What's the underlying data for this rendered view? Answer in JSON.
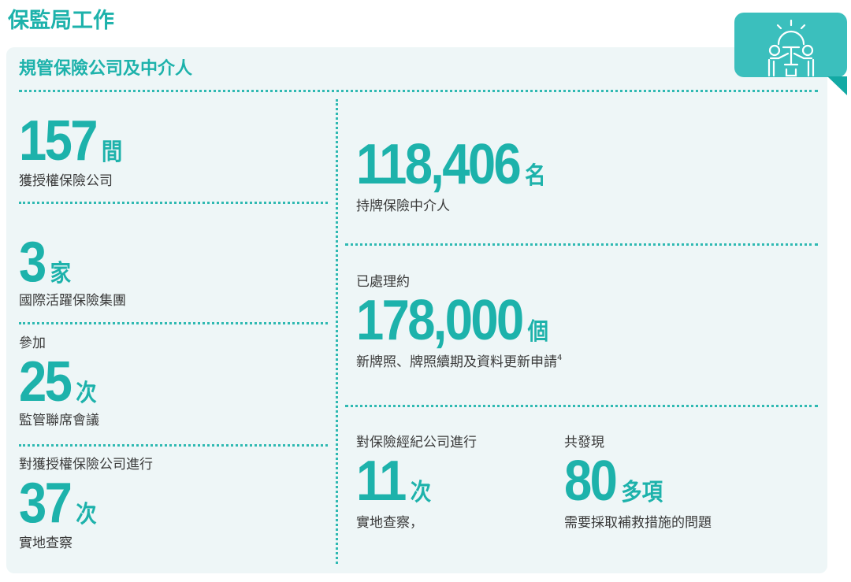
{
  "title": "保監局工作",
  "section": {
    "title": "規管保險公司及中介人"
  },
  "colors": {
    "accent": "#1db2ab",
    "panel": "#eef6f7",
    "icon_box": "#3bbfbd"
  },
  "icon": "team-idea-icon",
  "stats": {
    "insurers": {
      "value": "157",
      "unit": "間",
      "label": "獲授權保險公司"
    },
    "groups": {
      "value": "3",
      "unit": "家",
      "label": "國際活躍保險集團"
    },
    "colleges": {
      "prefix": "參加",
      "value": "25",
      "unit": "次",
      "label": "監管聯席會議"
    },
    "insurer_inspections": {
      "prefix": "對獲授權保險公司進行",
      "value": "37",
      "unit": "次",
      "label": "實地查察"
    },
    "intermediaries": {
      "value": "118,406",
      "unit": "名",
      "label": "持牌保險中介人"
    },
    "applications": {
      "prefix": "已處理約",
      "value": "178,000",
      "unit": "個",
      "label": "新牌照、牌照續期及資料更新申請",
      "footnote": "4"
    },
    "broker_inspections": {
      "prefix": "對保險經紀公司進行",
      "value": "11",
      "unit": "次",
      "label": "實地查察，"
    },
    "issues": {
      "prefix": "共發現",
      "value": "80",
      "unit": "多項",
      "label": "需要採取補救措施的問題"
    }
  }
}
